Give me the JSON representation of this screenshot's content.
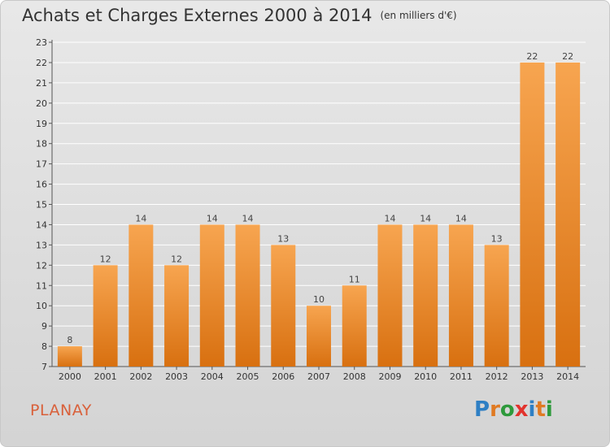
{
  "title": "Achats et Charges Externes 2000 à 2014",
  "unit_label": "(en milliers d'€)",
  "place_name": "PLANAY",
  "logo": {
    "text": "Proxiti",
    "letter_colors": [
      "#2e7fc4",
      "#e07a22",
      "#2e9a3c",
      "#e2332d",
      "#2e7fc4",
      "#e07a22",
      "#2e9a3c"
    ]
  },
  "colors": {
    "bar_top": "#f7a550",
    "bar_bottom": "#d87010",
    "gridline": "#ffffff"
  },
  "chart_data": {
    "type": "bar",
    "categories": [
      "2000",
      "2001",
      "2002",
      "2003",
      "2004",
      "2005",
      "2006",
      "2007",
      "2008",
      "2009",
      "2010",
      "2011",
      "2012",
      "2013",
      "2014"
    ],
    "values": [
      8,
      12,
      14,
      12,
      14,
      14,
      13,
      10,
      11,
      14,
      14,
      14,
      13,
      22,
      22
    ],
    "ylim": [
      7,
      23
    ],
    "yticks": [
      "7",
      "8",
      "9",
      "10",
      "11",
      "12",
      "13",
      "14",
      "15",
      "16",
      "17",
      "18",
      "19",
      "20",
      "21",
      "22",
      "23"
    ],
    "grid": true,
    "legend": "none",
    "xlabel": "",
    "ylabel": ""
  }
}
